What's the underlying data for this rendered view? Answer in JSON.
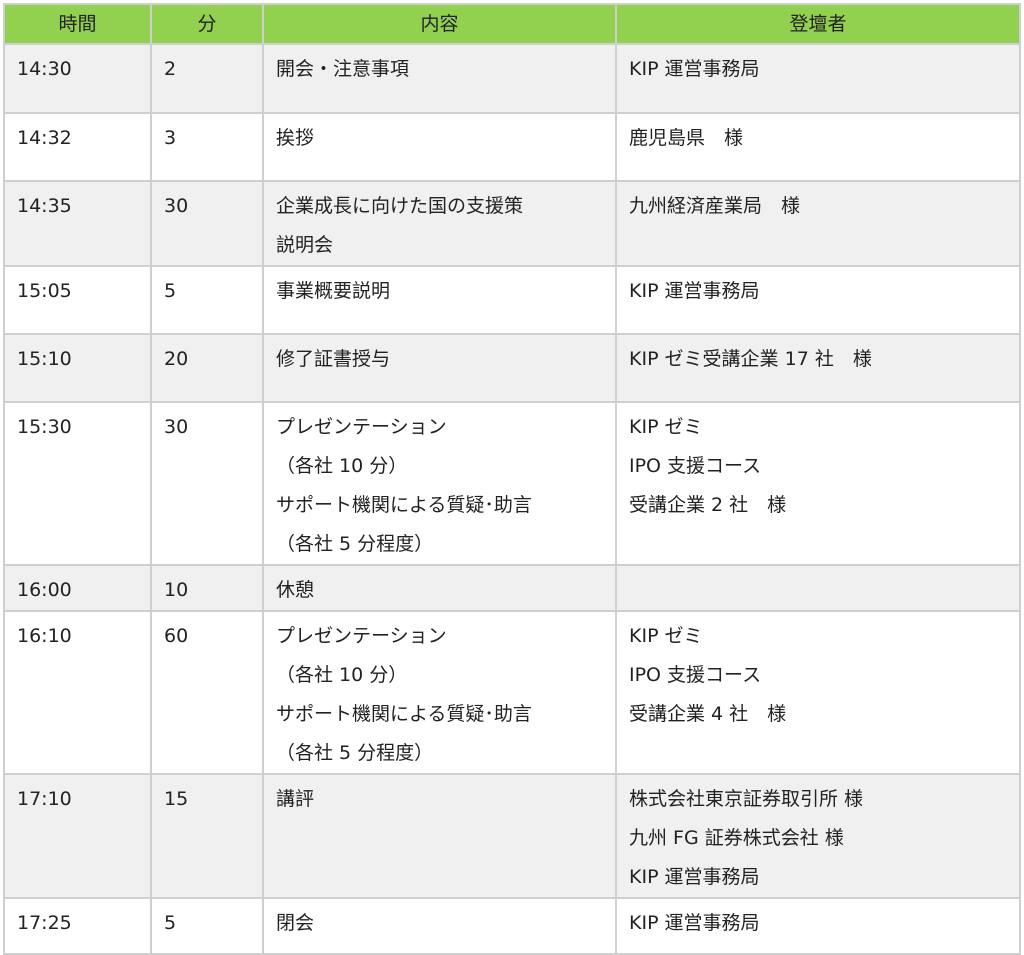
{
  "header_color": "#92d050",
  "headers": [
    "時間",
    "分",
    "内容",
    "登壇者"
  ],
  "rows": [
    {
      "time": "14:30",
      "minutes": "2",
      "content": [
        "開会・注意事項"
      ],
      "speaker": [
        "KIP 運営事務局"
      ]
    },
    {
      "time": "14:32",
      "minutes": "3",
      "content": [
        "挨拶"
      ],
      "speaker": [
        "鹿児島県　様"
      ]
    },
    {
      "time": "14:35",
      "minutes": "30",
      "content": [
        "企業成長に向けた国の支援策",
        "説明会"
      ],
      "speaker": [
        "九州経済産業局　様"
      ]
    },
    {
      "time": "15:05",
      "minutes": "5",
      "content": [
        "事業概要説明"
      ],
      "speaker": [
        "KIP 運営事務局"
      ]
    },
    {
      "time": "15:10",
      "minutes": "20",
      "content": [
        "修了証書授与"
      ],
      "speaker": [
        "KIP ゼミ受講企業 17 社　様"
      ]
    },
    {
      "time": "15:30",
      "minutes": "30",
      "content": [
        "プレゼンテーション",
        "（各社 10 分）",
        "サポート機関による質疑･助言",
        "（各社 5 分程度）"
      ],
      "speaker": [
        "KIP ゼミ",
        "IPO 支援コース",
        "受講企業 2 社　様"
      ]
    },
    {
      "time": "16:00",
      "minutes": "10",
      "content": [
        "休憩"
      ],
      "speaker": []
    },
    {
      "time": "16:10",
      "minutes": "60",
      "content": [
        "プレゼンテーション",
        "（各社 10 分）",
        "サポート機関による質疑･助言",
        "（各社 5 分程度）"
      ],
      "speaker": [
        "KIP ゼミ",
        "IPO 支援コース",
        "受講企業 4 社　様"
      ]
    },
    {
      "time": "17:10",
      "minutes": "15",
      "content": [
        "講評"
      ],
      "speaker": [
        "株式会社東京証券取引所 様",
        "九州 FG 証券株式会社 様",
        "KIP 運営事務局"
      ]
    },
    {
      "time": "17:25",
      "minutes": "5",
      "content": [
        "閉会"
      ],
      "speaker": [
        "KIP 運営事務局"
      ]
    }
  ]
}
